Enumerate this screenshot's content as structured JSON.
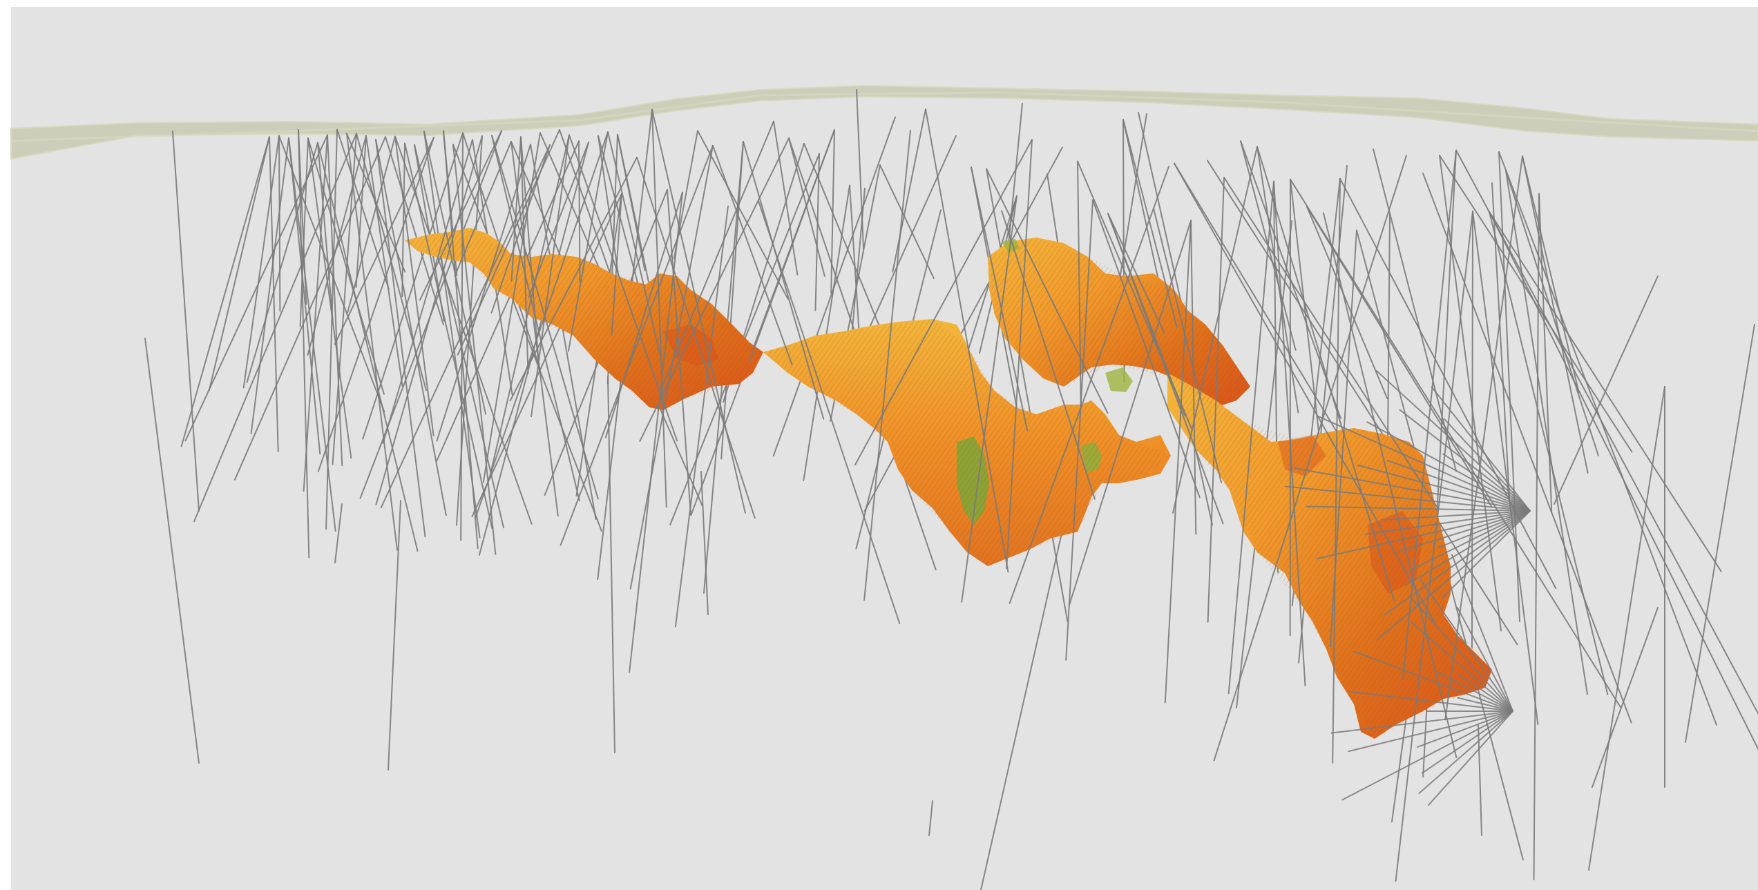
{
  "viewport": {
    "kind": "3d-scene-view",
    "background_color": "#e3e3e3",
    "frame_color": "#ffffff"
  },
  "scene": {
    "colors": {
      "drillhole": "#7a7a7a",
      "surface_fill": "#c9cab1",
      "surface_highlight": "#d8d8c0",
      "orebody_orange": "#f19a2c",
      "orebody_dark_orange": "#de6f1b",
      "orebody_red_orange": "#d9531a",
      "orebody_green": "#7aa83a",
      "orebody_yellow": "#f2b63c"
    },
    "layers": [
      {
        "name": "topography-surface",
        "kind": "translucent surface band"
      },
      {
        "name": "drillholes",
        "kind": "grey line traces"
      },
      {
        "name": "orebody-solid",
        "kind": "block model shell colored orange to green"
      }
    ]
  }
}
